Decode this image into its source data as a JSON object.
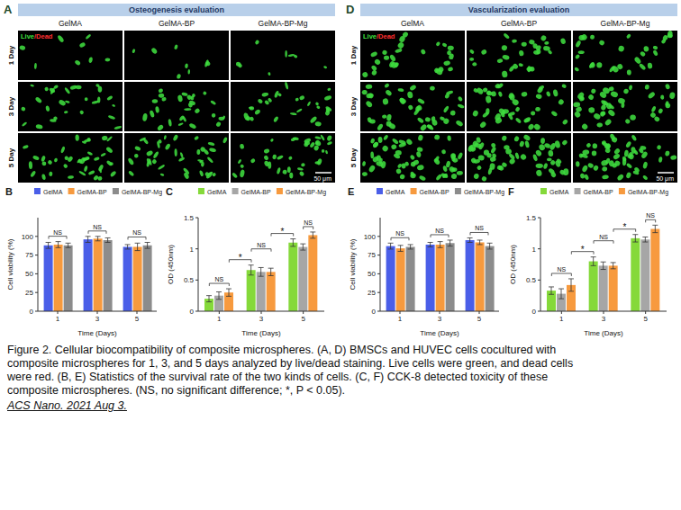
{
  "figure": {
    "panels": [
      {
        "letter": "A",
        "title": "Osteogenesis evaluation",
        "stain": "Live/Dead",
        "columns": [
          "GelMA",
          "GelMA-BP",
          "GelMA-BP-Mg"
        ],
        "rows": [
          "1 Day",
          "3 Day",
          "5 Day"
        ],
        "scale_bar": "50 μm"
      },
      {
        "letter": "D",
        "title": "Vascularization evaluation",
        "stain": "Live/Dead",
        "columns": [
          "GelMA",
          "GelMA-BP",
          "GelMA-BP-Mg"
        ],
        "rows": [
          "1 Day",
          "3 Day",
          "5 Day"
        ],
        "scale_bar": "50 μm"
      }
    ],
    "caption": "Figure 2. Cellular biocompatibility of composite microspheres. (A, D) BMSCs and HUVEC cells cocultured with composite microspheres for 1, 3, and 5 days analyzed by live/dead staining. Live cells were green, and dead cells were red. (B, E) Statistics of the survival rate of the two kinds of cells. (C, F) CCK-8 detected toxicity of these composite microspheres. (NS, no significant difference; *, P < 0.05).",
    "citation": "ACS Nano. 2021 Aug 3."
  },
  "chart_data": [
    {
      "panel": "B",
      "type": "bar",
      "categories": [
        "1",
        "3",
        "5"
      ],
      "x_label": "Time (Days)",
      "y_label": "Cell viability (%)",
      "ylim": [
        0,
        125
      ],
      "yticks": [
        0,
        25,
        50,
        75,
        100
      ],
      "legend": "top",
      "series": [
        {
          "name": "GelMA",
          "color": "#4a5ee8",
          "values": [
            88,
            96,
            86
          ],
          "errors": [
            4,
            4,
            3
          ]
        },
        {
          "name": "GelMA-BP",
          "color": "#f79a3e",
          "values": [
            89,
            97,
            86
          ],
          "errors": [
            4,
            3,
            5
          ]
        },
        {
          "name": "GelMA-BP-Mg",
          "color": "#8c8c8c",
          "values": [
            88,
            95,
            88
          ],
          "errors": [
            3,
            3,
            4
          ]
        }
      ],
      "annotations": [
        {
          "text": "NS",
          "between": [
            [
              "1",
              "GelMA"
            ],
            [
              "1",
              "GelMA-BP-Mg"
            ]
          ]
        },
        {
          "text": "NS",
          "between": [
            [
              "3",
              "GelMA"
            ],
            [
              "3",
              "GelMA-BP-Mg"
            ]
          ]
        },
        {
          "text": "NS",
          "between": [
            [
              "5",
              "GelMA"
            ],
            [
              "5",
              "GelMA-BP-Mg"
            ]
          ]
        }
      ]
    },
    {
      "panel": "C",
      "type": "bar",
      "categories": [
        "1",
        "3",
        "5"
      ],
      "x_label": "Time (Days)",
      "y_label": "OD (450nm)",
      "ylim": [
        0,
        1.5
      ],
      "yticks": [
        0,
        0.5,
        1,
        1.5
      ],
      "legend": "top",
      "series": [
        {
          "name": "GelMA",
          "color": "#85d93a",
          "values": [
            0.2,
            0.66,
            1.1
          ],
          "errors": [
            0.05,
            0.08,
            0.06
          ]
        },
        {
          "name": "GelMA-BP",
          "color": "#a6a6a6",
          "values": [
            0.25,
            0.63,
            1.03
          ],
          "errors": [
            0.06,
            0.07,
            0.05
          ]
        },
        {
          "name": "GelMA-BP-Mg",
          "color": "#f79a3e",
          "values": [
            0.3,
            0.63,
            1.22
          ],
          "errors": [
            0.06,
            0.06,
            0.05
          ]
        }
      ],
      "annotations": [
        {
          "text": "NS",
          "between": [
            [
              "1",
              "GelMA"
            ],
            [
              "1",
              "GelMA-BP-Mg"
            ]
          ]
        },
        {
          "text": "*",
          "between": [
            [
              "1",
              "GelMA-BP-Mg"
            ],
            [
              "3",
              "GelMA"
            ]
          ]
        },
        {
          "text": "NS",
          "between": [
            [
              "3",
              "GelMA"
            ],
            [
              "3",
              "GelMA-BP-Mg"
            ]
          ]
        },
        {
          "text": "*",
          "between": [
            [
              "3",
              "GelMA-BP-Mg"
            ],
            [
              "5",
              "GelMA"
            ]
          ]
        },
        {
          "text": "NS",
          "between": [
            [
              "5",
              "GelMA-BP"
            ],
            [
              "5",
              "GelMA-BP-Mg"
            ]
          ]
        }
      ]
    },
    {
      "panel": "E",
      "type": "bar",
      "categories": [
        "1",
        "3",
        "5"
      ],
      "x_label": "Time (Days)",
      "y_label": "Cell viability (%)",
      "ylim": [
        0,
        125
      ],
      "yticks": [
        0,
        25,
        50,
        75,
        100
      ],
      "legend": "top",
      "series": [
        {
          "name": "GelMA",
          "color": "#4a5ee8",
          "values": [
            87,
            89,
            95
          ],
          "errors": [
            4,
            3,
            3
          ]
        },
        {
          "name": "GelMA-BP",
          "color": "#f79a3e",
          "values": [
            84,
            89,
            92
          ],
          "errors": [
            4,
            4,
            3
          ]
        },
        {
          "name": "GelMA-BP-Mg",
          "color": "#8c8c8c",
          "values": [
            86,
            91,
            87
          ],
          "errors": [
            3,
            4,
            4
          ]
        }
      ],
      "annotations": [
        {
          "text": "NS",
          "between": [
            [
              "1",
              "GelMA"
            ],
            [
              "1",
              "GelMA-BP-Mg"
            ]
          ]
        },
        {
          "text": "NS",
          "between": [
            [
              "3",
              "GelMA"
            ],
            [
              "3",
              "GelMA-BP-Mg"
            ]
          ]
        },
        {
          "text": "NS",
          "between": [
            [
              "5",
              "GelMA"
            ],
            [
              "5",
              "GelMA-BP-Mg"
            ]
          ]
        }
      ]
    },
    {
      "panel": "F",
      "type": "bar",
      "categories": [
        "1",
        "3",
        "5"
      ],
      "x_label": "Time (Days)",
      "y_label": "OD (450nm)",
      "ylim": [
        0,
        1.5
      ],
      "yticks": [
        0,
        0.5,
        1,
        1.5
      ],
      "legend": "top",
      "series": [
        {
          "name": "GelMA",
          "color": "#85d93a",
          "values": [
            0.33,
            0.8,
            1.17
          ],
          "errors": [
            0.06,
            0.07,
            0.06
          ]
        },
        {
          "name": "GelMA-BP",
          "color": "#a6a6a6",
          "values": [
            0.28,
            0.73,
            1.15
          ],
          "errors": [
            0.08,
            0.06,
            0.04
          ]
        },
        {
          "name": "GelMA-BP-Mg",
          "color": "#f79a3e",
          "values": [
            0.42,
            0.73,
            1.32
          ],
          "errors": [
            0.1,
            0.05,
            0.06
          ]
        }
      ],
      "annotations": [
        {
          "text": "NS",
          "between": [
            [
              "1",
              "GelMA"
            ],
            [
              "1",
              "GelMA-BP-Mg"
            ]
          ]
        },
        {
          "text": "*",
          "between": [
            [
              "1",
              "GelMA-BP-Mg"
            ],
            [
              "3",
              "GelMA"
            ]
          ]
        },
        {
          "text": "NS",
          "between": [
            [
              "3",
              "GelMA"
            ],
            [
              "3",
              "GelMA-BP-Mg"
            ]
          ]
        },
        {
          "text": "*",
          "between": [
            [
              "3",
              "GelMA-BP-Mg"
            ],
            [
              "5",
              "GelMA"
            ]
          ]
        },
        {
          "text": "NS",
          "between": [
            [
              "5",
              "GelMA-BP"
            ],
            [
              "5",
              "GelMA-BP-Mg"
            ]
          ]
        }
      ]
    }
  ]
}
